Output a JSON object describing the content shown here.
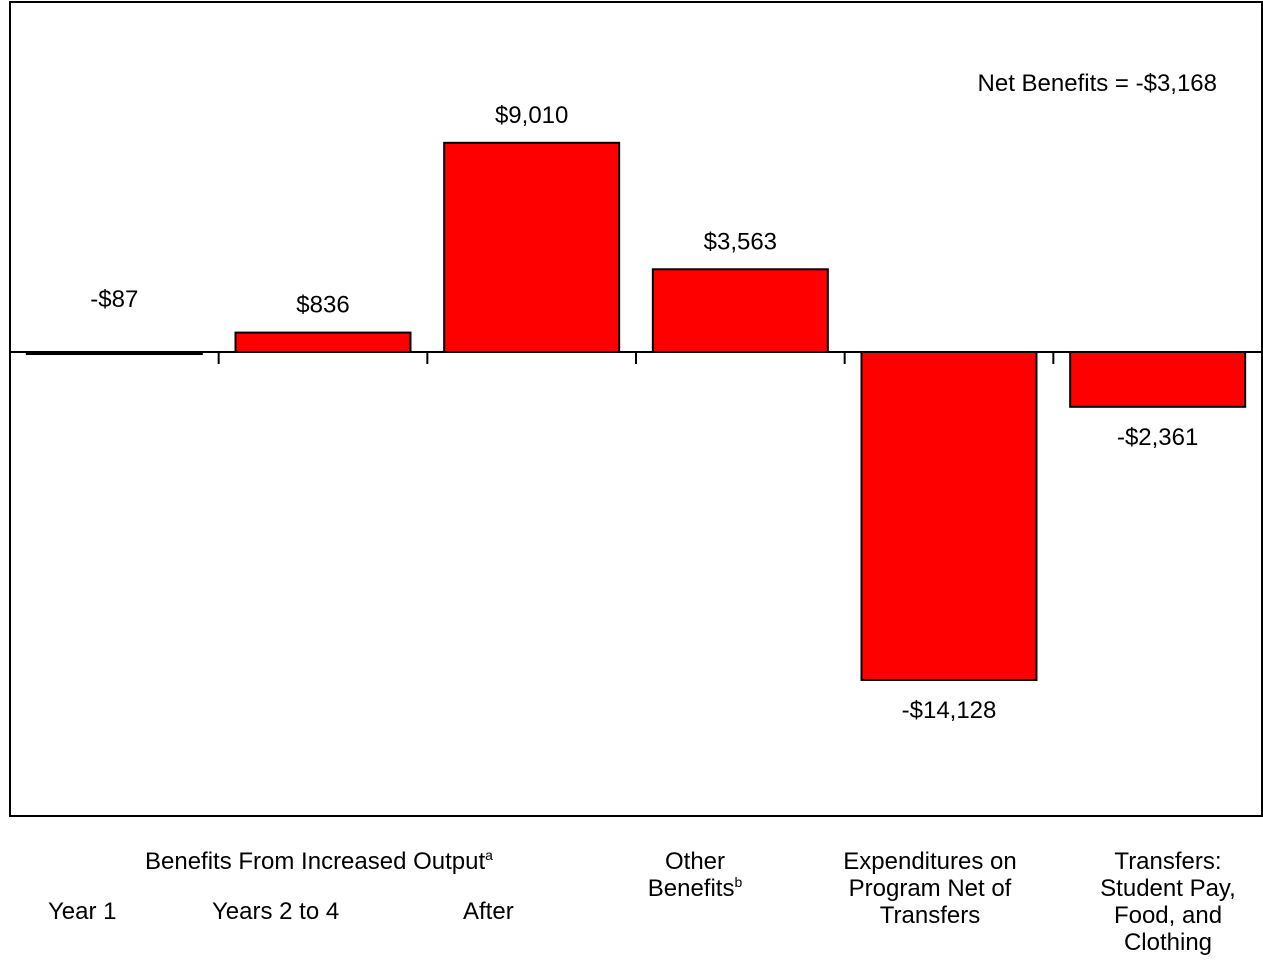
{
  "chart_data": {
    "type": "bar",
    "categories": [
      "Year 1",
      "Years 2 to 4",
      "After",
      "Other Benefits",
      "Expenditures on Program Net of Transfers",
      "Transfers: Student Pay, Food, and Clothing"
    ],
    "values": [
      -87,
      836,
      9010,
      3563,
      -14128,
      -2361
    ],
    "value_labels": [
      "-$87",
      "$836",
      "$9,010",
      "$3,563",
      "-$14,128",
      "-$2,361"
    ],
    "annotation": "Net Benefits = -$3,168",
    "ylim": [
      -20000,
      15000
    ],
    "bar_color": "#ff0000",
    "grid": false,
    "group_label": {
      "text": "Benefits From Increased Output",
      "sup": "a"
    },
    "category_labels": {
      "year1": "Year 1",
      "years2to4": "Years 2 to 4",
      "after": "After",
      "other_line1": "Other",
      "other_line2": "Benefits",
      "other_sup": "b",
      "exp_line1": "Expenditures on",
      "exp_line2": "Program Net of",
      "exp_line3": "Transfers",
      "tr_line1": "Transfers:",
      "tr_line2": "Student Pay,",
      "tr_line3": "Food, and",
      "tr_line4": "Clothing"
    }
  }
}
